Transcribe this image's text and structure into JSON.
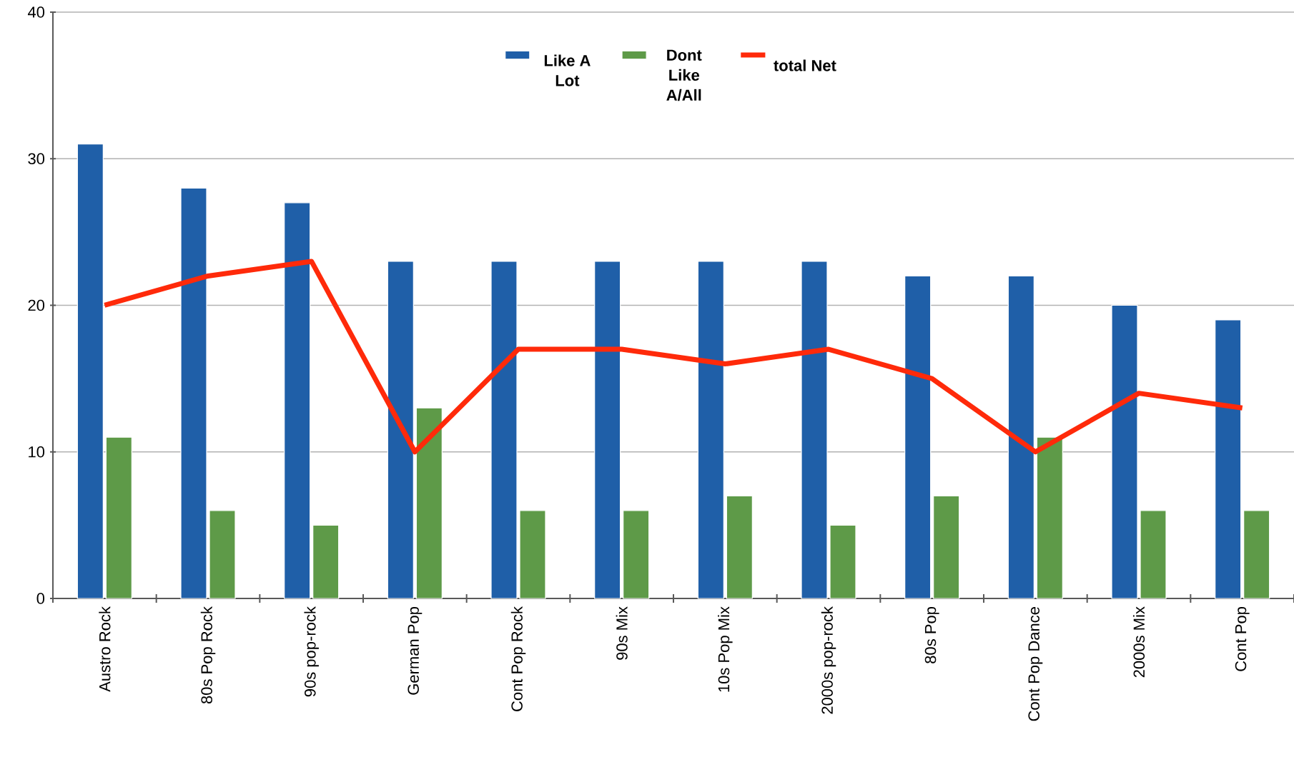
{
  "chart_data": {
    "type": "bar",
    "categories": [
      "Austro Rock",
      "80s Pop Rock",
      "90s pop-rock",
      "German Pop",
      "Cont Pop Rock",
      "90s Mix",
      "10s Pop Mix",
      "2000s pop-rock",
      "80s Pop",
      "Cont Pop Dance",
      "2000s Mix",
      "Cont Pop"
    ],
    "series": [
      {
        "name": "Like A Lot",
        "color": "#1f5fa8",
        "values": [
          31,
          28,
          27,
          23,
          23,
          23,
          23,
          23,
          22,
          22,
          20,
          19
        ]
      },
      {
        "name": "Dont Like A/All",
        "color": "#5e9a48",
        "values": [
          11,
          6,
          5,
          13,
          6,
          6,
          7,
          5,
          7,
          11,
          6,
          6
        ]
      },
      {
        "name": "total Net",
        "type": "line",
        "color": "#ff2a0a",
        "marker": "none",
        "values": [
          20,
          22,
          23,
          10,
          17,
          17,
          16,
          17,
          15,
          10,
          14,
          13
        ]
      }
    ],
    "ylim": [
      0,
      40
    ],
    "yticks": [
      0,
      10,
      20,
      30,
      40
    ],
    "grid": "y",
    "legend": "top"
  }
}
